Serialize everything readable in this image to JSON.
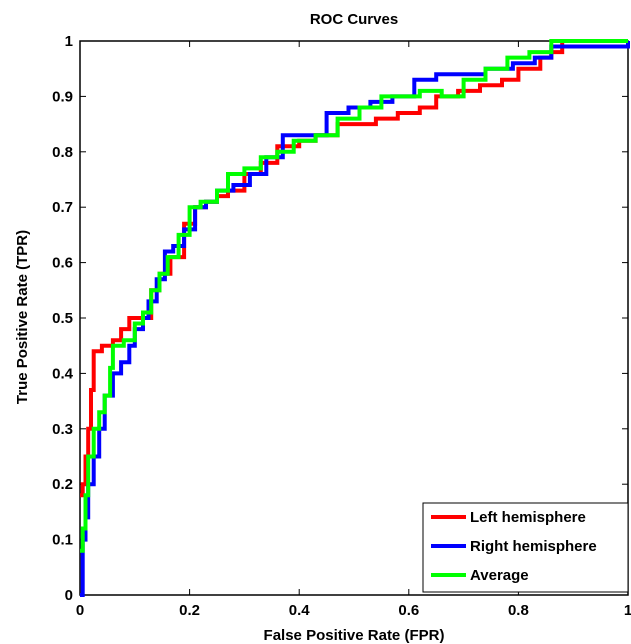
{
  "chart_data": {
    "type": "line",
    "title": "ROC Curves",
    "xlabel": "False Positive Rate (FPR)",
    "ylabel": "True Positive Rate (TPR)",
    "xlim": [
      0,
      1
    ],
    "ylim": [
      0,
      1
    ],
    "xticks": [
      0,
      0.2,
      0.4,
      0.6,
      0.8,
      1
    ],
    "xtick_labels": [
      "0",
      "0.2",
      "0.4",
      "0.6",
      "0.8",
      "1"
    ],
    "yticks": [
      0,
      0.1,
      0.2,
      0.3,
      0.4,
      0.5,
      0.6,
      0.7,
      0.8,
      0.9,
      1
    ],
    "ytick_labels": [
      "0",
      "0.1",
      "0.2",
      "0.3",
      "0.4",
      "0.5",
      "0.6",
      "0.7",
      "0.8",
      "0.9",
      "1"
    ],
    "grid": false,
    "legend_position": "bottom-right",
    "series": [
      {
        "name": "Left hemisphere",
        "color": "#ff0000",
        "points": [
          [
            0,
            0.18
          ],
          [
            0.005,
            0.2
          ],
          [
            0.01,
            0.25
          ],
          [
            0.015,
            0.3
          ],
          [
            0.02,
            0.37
          ],
          [
            0.025,
            0.44
          ],
          [
            0.04,
            0.45
          ],
          [
            0.06,
            0.46
          ],
          [
            0.075,
            0.48
          ],
          [
            0.09,
            0.5
          ],
          [
            0.11,
            0.5
          ],
          [
            0.13,
            0.55
          ],
          [
            0.145,
            0.58
          ],
          [
            0.165,
            0.61
          ],
          [
            0.19,
            0.67
          ],
          [
            0.21,
            0.7
          ],
          [
            0.23,
            0.71
          ],
          [
            0.25,
            0.72
          ],
          [
            0.27,
            0.73
          ],
          [
            0.3,
            0.76
          ],
          [
            0.33,
            0.78
          ],
          [
            0.36,
            0.81
          ],
          [
            0.4,
            0.82
          ],
          [
            0.43,
            0.83
          ],
          [
            0.47,
            0.85
          ],
          [
            0.5,
            0.85
          ],
          [
            0.54,
            0.86
          ],
          [
            0.58,
            0.87
          ],
          [
            0.62,
            0.88
          ],
          [
            0.65,
            0.9
          ],
          [
            0.69,
            0.91
          ],
          [
            0.73,
            0.92
          ],
          [
            0.77,
            0.93
          ],
          [
            0.8,
            0.95
          ],
          [
            0.84,
            0.97
          ],
          [
            0.86,
            0.98
          ],
          [
            0.88,
            1.0
          ],
          [
            1.0,
            1.0
          ]
        ]
      },
      {
        "name": "Right hemisphere",
        "color": "#0000ff",
        "points": [
          [
            0,
            0.0
          ],
          [
            0.005,
            0.1
          ],
          [
            0.01,
            0.14
          ],
          [
            0.015,
            0.2
          ],
          [
            0.025,
            0.25
          ],
          [
            0.035,
            0.3
          ],
          [
            0.045,
            0.36
          ],
          [
            0.06,
            0.4
          ],
          [
            0.075,
            0.42
          ],
          [
            0.09,
            0.45
          ],
          [
            0.1,
            0.48
          ],
          [
            0.115,
            0.5
          ],
          [
            0.125,
            0.53
          ],
          [
            0.14,
            0.57
          ],
          [
            0.155,
            0.62
          ],
          [
            0.17,
            0.63
          ],
          [
            0.19,
            0.66
          ],
          [
            0.21,
            0.7
          ],
          [
            0.23,
            0.71
          ],
          [
            0.25,
            0.73
          ],
          [
            0.28,
            0.74
          ],
          [
            0.31,
            0.76
          ],
          [
            0.34,
            0.79
          ],
          [
            0.37,
            0.83
          ],
          [
            0.41,
            0.83
          ],
          [
            0.45,
            0.87
          ],
          [
            0.49,
            0.88
          ],
          [
            0.53,
            0.89
          ],
          [
            0.57,
            0.9
          ],
          [
            0.61,
            0.93
          ],
          [
            0.65,
            0.94
          ],
          [
            0.69,
            0.94
          ],
          [
            0.74,
            0.95
          ],
          [
            0.79,
            0.96
          ],
          [
            0.83,
            0.97
          ],
          [
            0.86,
            0.99
          ],
          [
            0.9,
            0.99
          ],
          [
            0.97,
            0.99
          ],
          [
            1.0,
            1.0
          ]
        ]
      },
      {
        "name": "Average",
        "color": "#00ff00",
        "points": [
          [
            0,
            0.08
          ],
          [
            0.005,
            0.12
          ],
          [
            0.01,
            0.18
          ],
          [
            0.015,
            0.25
          ],
          [
            0.025,
            0.3
          ],
          [
            0.035,
            0.33
          ],
          [
            0.045,
            0.36
          ],
          [
            0.055,
            0.41
          ],
          [
            0.06,
            0.45
          ],
          [
            0.08,
            0.46
          ],
          [
            0.1,
            0.49
          ],
          [
            0.115,
            0.51
          ],
          [
            0.13,
            0.55
          ],
          [
            0.145,
            0.58
          ],
          [
            0.16,
            0.61
          ],
          [
            0.18,
            0.65
          ],
          [
            0.2,
            0.7
          ],
          [
            0.22,
            0.71
          ],
          [
            0.25,
            0.73
          ],
          [
            0.27,
            0.76
          ],
          [
            0.3,
            0.77
          ],
          [
            0.33,
            0.79
          ],
          [
            0.36,
            0.8
          ],
          [
            0.39,
            0.82
          ],
          [
            0.43,
            0.83
          ],
          [
            0.47,
            0.86
          ],
          [
            0.51,
            0.88
          ],
          [
            0.55,
            0.9
          ],
          [
            0.58,
            0.9
          ],
          [
            0.62,
            0.91
          ],
          [
            0.66,
            0.9
          ],
          [
            0.7,
            0.93
          ],
          [
            0.74,
            0.95
          ],
          [
            0.78,
            0.97
          ],
          [
            0.82,
            0.98
          ],
          [
            0.86,
            1.0
          ],
          [
            1.0,
            1.0
          ]
        ]
      }
    ]
  }
}
